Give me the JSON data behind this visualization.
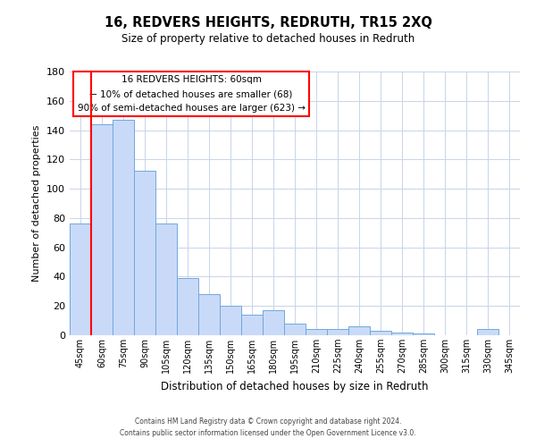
{
  "title": "16, REDVERS HEIGHTS, REDRUTH, TR15 2XQ",
  "subtitle": "Size of property relative to detached houses in Redruth",
  "xlabel": "Distribution of detached houses by size in Redruth",
  "ylabel": "Number of detached properties",
  "categories": [
    "45sqm",
    "60sqm",
    "75sqm",
    "90sqm",
    "105sqm",
    "120sqm",
    "135sqm",
    "150sqm",
    "165sqm",
    "180sqm",
    "195sqm",
    "210sqm",
    "225sqm",
    "240sqm",
    "255sqm",
    "270sqm",
    "285sqm",
    "300sqm",
    "315sqm",
    "330sqm",
    "345sqm"
  ],
  "values": [
    76,
    144,
    147,
    112,
    76,
    39,
    28,
    20,
    14,
    17,
    8,
    4,
    4,
    6,
    3,
    2,
    1,
    0,
    0,
    4,
    0
  ],
  "bar_color": "#c9daf8",
  "bar_edge_color": "#6fa8dc",
  "red_line_index": 1,
  "ylim": [
    0,
    180
  ],
  "yticks": [
    0,
    20,
    40,
    60,
    80,
    100,
    120,
    140,
    160,
    180
  ],
  "annotation_title": "16 REDVERS HEIGHTS: 60sqm",
  "annotation_line1": "← 10% of detached houses are smaller (68)",
  "annotation_line2": "90% of semi-detached houses are larger (623) →",
  "footer_line1": "Contains HM Land Registry data © Crown copyright and database right 2024.",
  "footer_line2": "Contains public sector information licensed under the Open Government Licence v3.0.",
  "background_color": "#ffffff",
  "grid_color": "#c8d4e8"
}
